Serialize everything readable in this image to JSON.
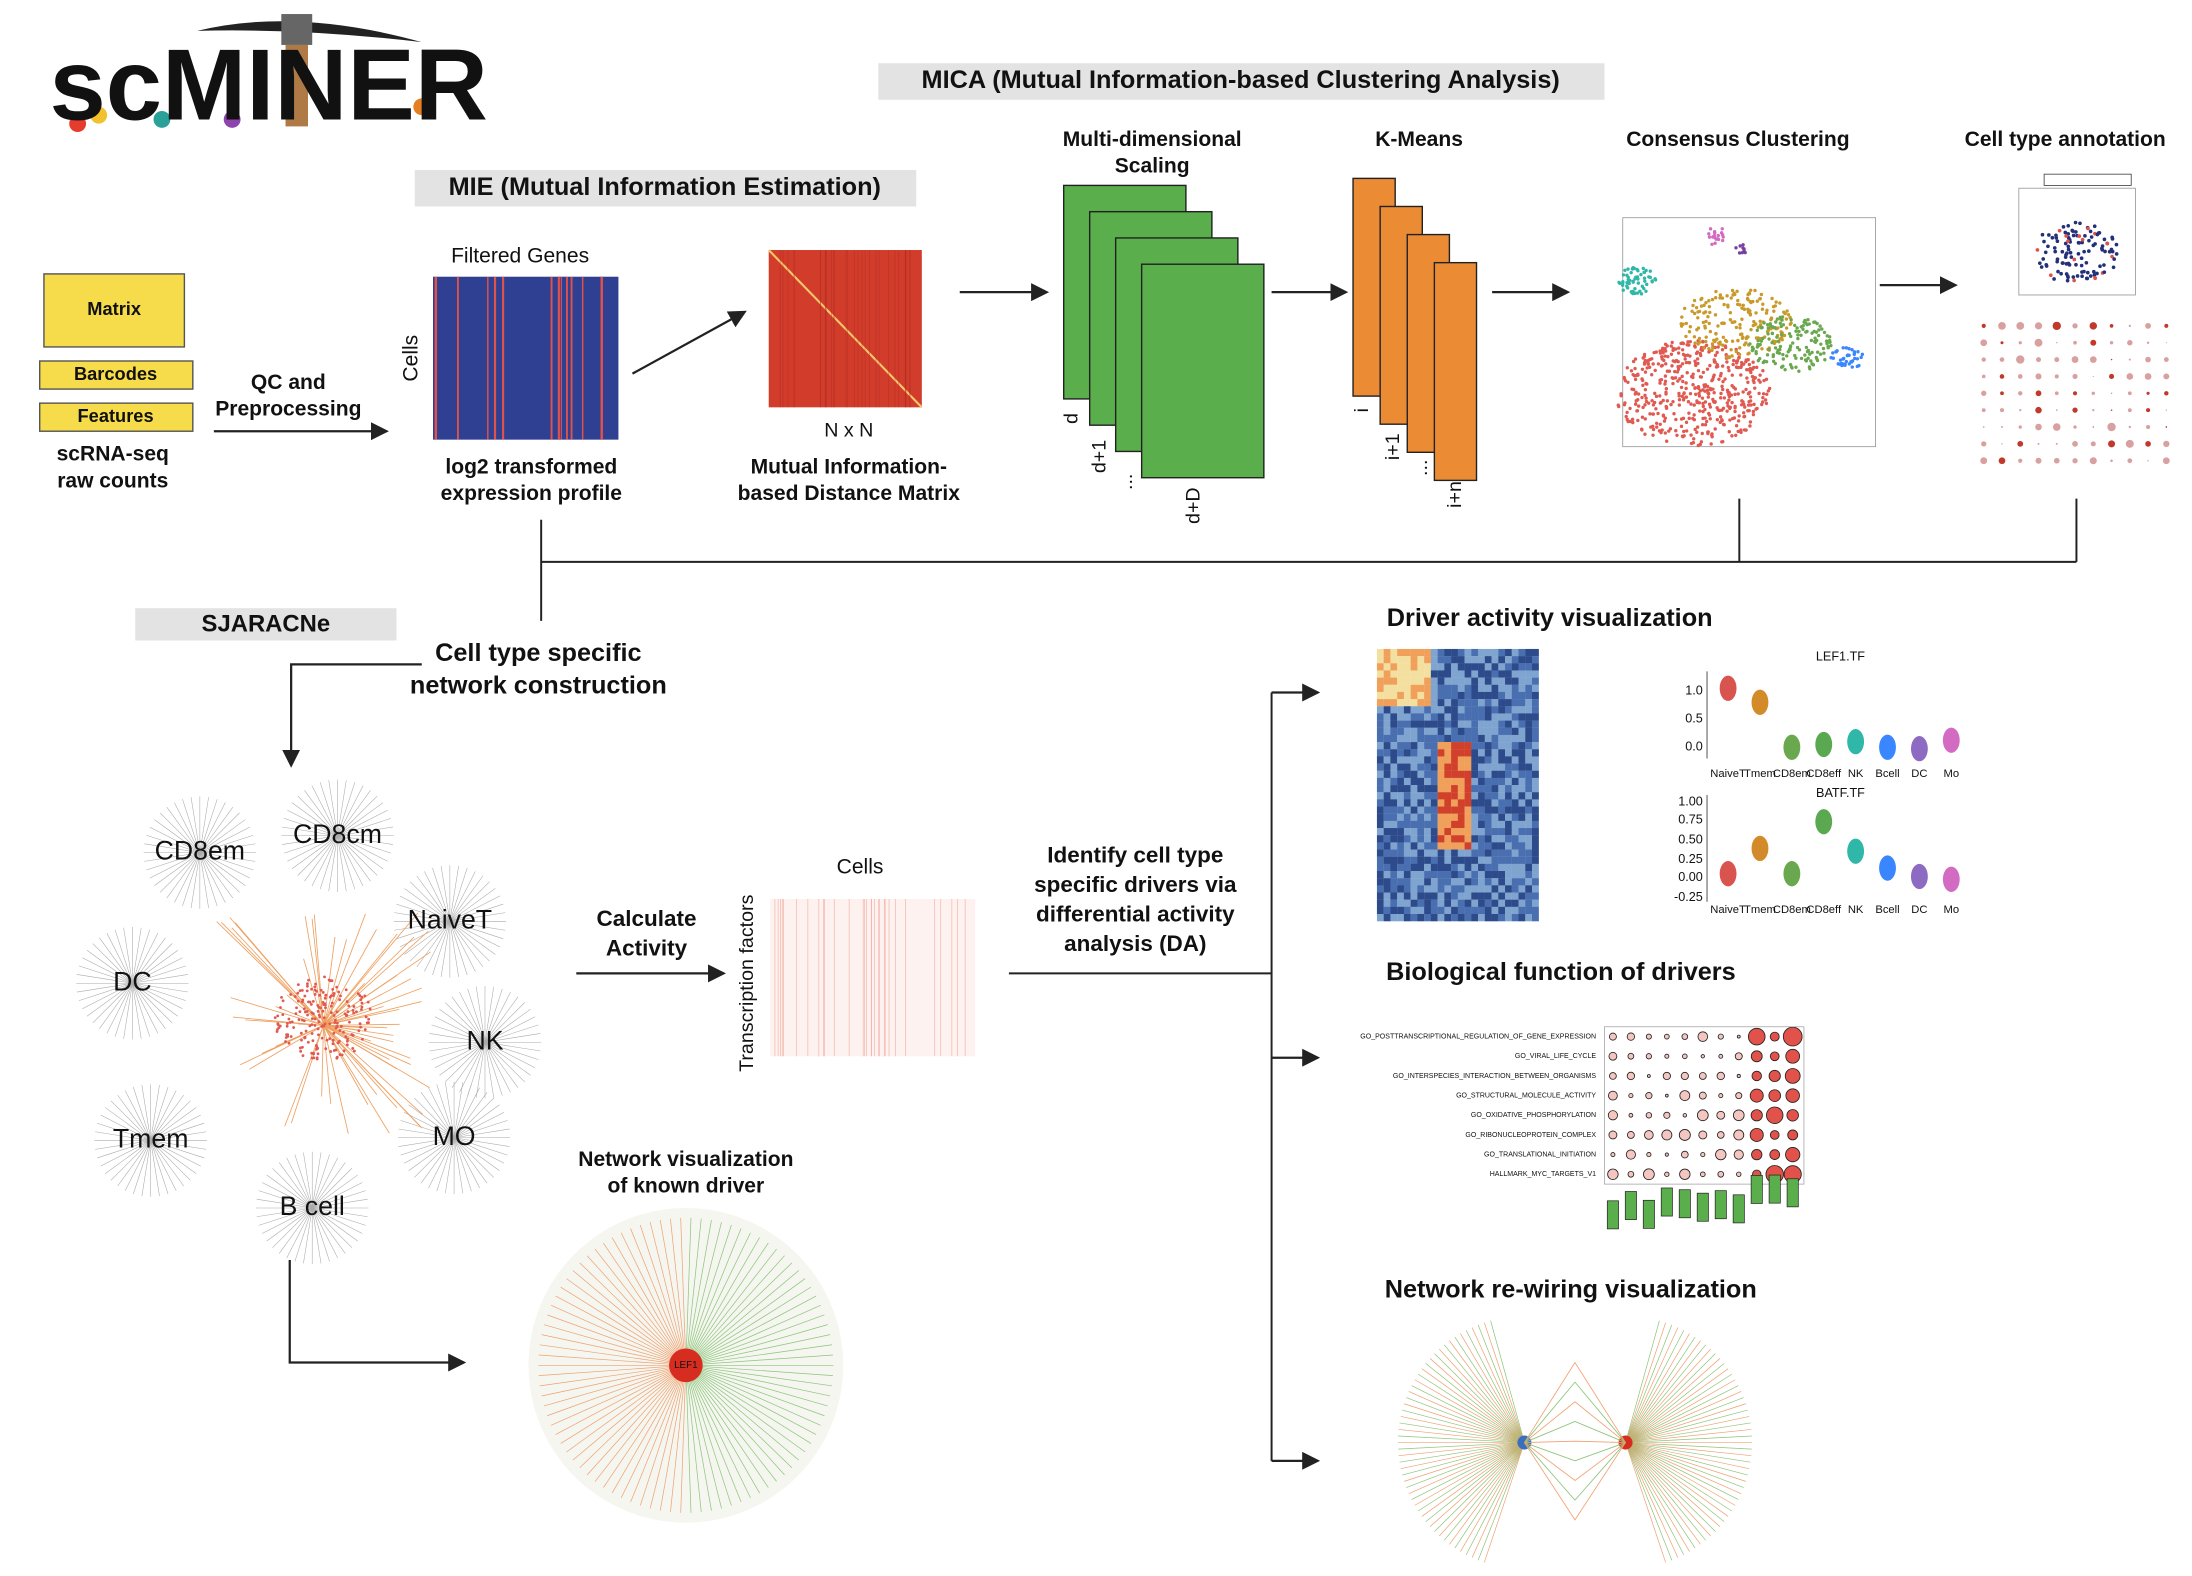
{
  "logo": "scMINER",
  "input": {
    "boxes": [
      "Matrix",
      "Barcodes",
      "Features"
    ],
    "caption": [
      "scRNA-seq",
      "raw counts"
    ],
    "qc": [
      "QC and",
      "Preprocessing"
    ]
  },
  "mica": {
    "title": "MICA (Mutual Information-based Clustering Analysis)",
    "mds_title": [
      "Multi-dimensional",
      "Scaling"
    ],
    "mds_labels": [
      "d",
      "d+1",
      "...",
      "d+D"
    ],
    "kmeans_title": "K-Means",
    "kmeans_labels": [
      "i",
      "i+1",
      "...",
      "i+n"
    ],
    "consensus_title": "Consensus Clustering",
    "annotation_title": "Cell type annotation"
  },
  "mie": {
    "title": "MIE (Mutual Information Estimation)",
    "filtered_genes": "Filtered Genes",
    "cells": "Cells",
    "expression_caption": [
      "log2 transformed",
      "expression profile"
    ],
    "nxn": "N x N",
    "distance_caption": [
      "Mutual Information-",
      "based Distance Matrix"
    ]
  },
  "sjaracne": {
    "title": "SJARACNe",
    "caption": [
      "Cell type specific",
      "network construction"
    ],
    "networks": [
      "CD8em",
      "CD8cm",
      "NaiveT",
      "DC",
      "NK",
      "Tmem",
      "MO",
      "B cell"
    ]
  },
  "activity": {
    "step": [
      "Calculate",
      "Activity"
    ],
    "x_label": "Cells",
    "y_label": "Transcription factors"
  },
  "da": [
    "Identify cell type",
    "specific drivers via",
    "differential activity",
    "analysis (DA)"
  ],
  "network_viz": {
    "title": [
      "Network visualization",
      "of known driver"
    ],
    "hub": "LEF1"
  },
  "driver_activity": {
    "title": "Driver activity visualization",
    "violin_titles": [
      "LEF1.TF",
      "BATF.TF"
    ],
    "cell_types": [
      "NaiveT",
      "Tmem",
      "CD8em",
      "CD8eff",
      "NK",
      "Bcell",
      "DC",
      "Mo"
    ],
    "lef1_ticks": [
      "1.0",
      "0.5",
      "0.0"
    ],
    "batf_ticks": [
      "1.00",
      "0.75",
      "0.50",
      "0.25",
      "0.00",
      "-0.25"
    ]
  },
  "bio_function": {
    "title": "Biological function of drivers",
    "terms": [
      "GO_POSTTRANSCRIPTIONAL_REGULATION_OF_GENE_EXPRESSION",
      "GO_VIRAL_LIFE_CYCLE",
      "GO_INTERSPECIES_INTERACTION_BETWEEN_ORGANISMS",
      "GO_STRUCTURAL_MOLECULE_ACTIVITY",
      "GO_OXIDATIVE_PHOSPHORYLATION",
      "GO_RIBONUCLEOPROTEIN_COMPLEX",
      "GO_TRANSLATIONAL_INITIATION",
      "HALLMARK_MYC_TARGETS_V1"
    ]
  },
  "rewiring": {
    "title": "Network re-wiring visualization"
  }
}
